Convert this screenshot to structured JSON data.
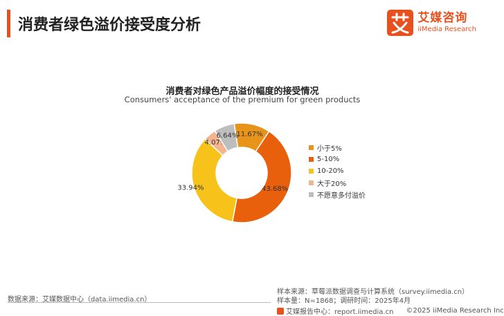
{
  "header": {
    "title": "消费者绿色溢价接受度分析",
    "brand_cn": "艾媒咨询",
    "brand_en": "iiMedia Research",
    "accent_color": "#e8501d"
  },
  "chart_data": {
    "type": "pie",
    "donut": true,
    "title": "消费者对绿色产品溢价幅度的接受情况",
    "subtitle": "Consumers' acceptance of the premium for green products",
    "legend_position": "right",
    "categories": [
      "小于5%",
      "5-10%",
      "10-20%",
      "大于20%",
      "不愿意多付溢价"
    ],
    "values": [
      11.67,
      43.68,
      33.94,
      4.07,
      6.64
    ],
    "value_labels": [
      "11.67%",
      "43.68%",
      "33.94%",
      "4.07%",
      "6.64%"
    ],
    "colors": [
      "#e8941a",
      "#e8600c",
      "#f7c21a",
      "#f2b58f",
      "#bdbdbd"
    ]
  },
  "footer": {
    "source_left": "数据来源：艾媒数据中心（data.iimedia.cn）",
    "sample_source": "样本来源：草莓派数据调查与计算系统（survey.iimedia.cn）",
    "sample_size": "样本量：N=1868；调研时间：2025年4月",
    "report_center": "艾媒报告中心：report.iimedia.cn",
    "copyright": "©2025  iiMedia Research  Inc"
  }
}
